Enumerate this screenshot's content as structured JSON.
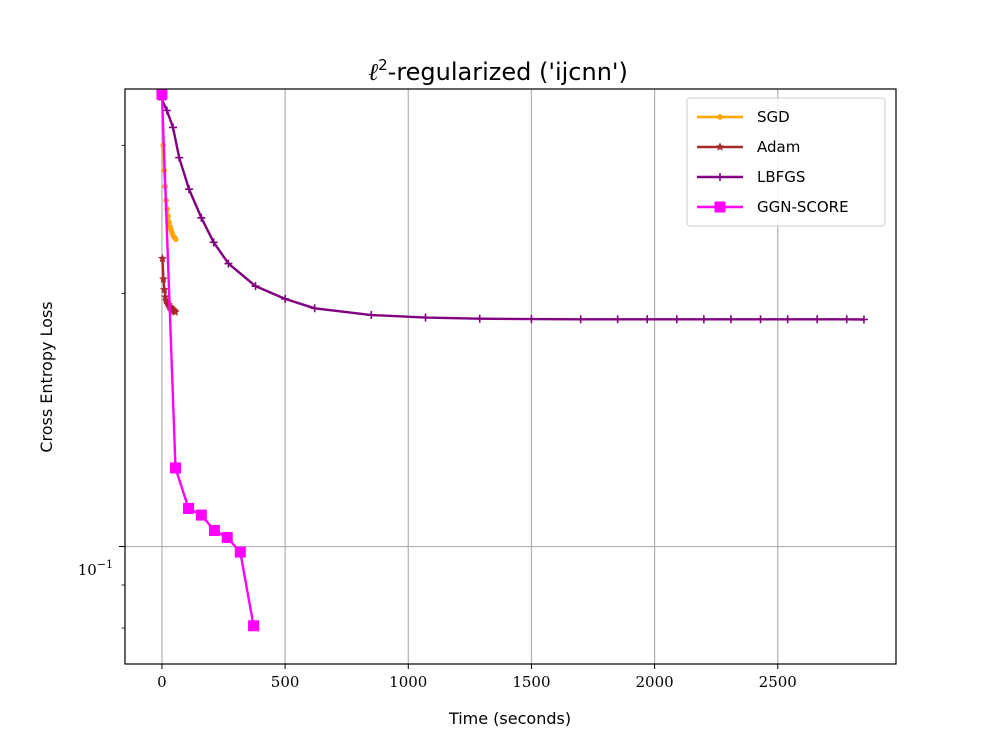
{
  "chart_data": {
    "type": "line",
    "title_main": "-regularized ('ijcnn')",
    "title_symbol": "ℓ",
    "title_sup": "2",
    "xlabel": "Time (seconds)",
    "ylabel": "Cross Entropy Loss",
    "xscale": "linear",
    "yscale": "log",
    "xlim": [
      -150,
      2980
    ],
    "ylim": [
      0.0725,
      0.35
    ],
    "xticks": [
      0,
      500,
      1000,
      1500,
      2000,
      2500
    ],
    "xtick_labels": [
      "0",
      "500",
      "1000",
      "1500",
      "2000",
      "2500"
    ],
    "ytick_major_label_base": "10",
    "ytick_major_label_exp": "−1",
    "ytick_major_value": 0.1,
    "grid": true,
    "legend_position": "top-right",
    "series": [
      {
        "name": "SGD",
        "color": "#ffa500",
        "marker": "circle",
        "x": [
          5,
          9,
          13,
          17,
          21,
          25,
          29,
          33,
          37,
          41,
          46,
          51,
          56
        ],
        "y": [
          0.3,
          0.28,
          0.268,
          0.258,
          0.252,
          0.247,
          0.243,
          0.24,
          0.238,
          0.236,
          0.234,
          0.233,
          0.232
        ]
      },
      {
        "name": "Adam",
        "color": "#a52a2a",
        "marker": "star",
        "x": [
          2,
          6,
          10,
          14,
          18,
          22,
          26,
          30,
          34,
          38,
          42,
          46,
          50,
          54
        ],
        "y": [
          0.22,
          0.208,
          0.202,
          0.198,
          0.196,
          0.195,
          0.194,
          0.193,
          0.1925,
          0.192,
          0.1915,
          0.191,
          0.1905,
          0.19
        ]
      },
      {
        "name": "LBFGS",
        "color": "#800080",
        "marker": "plus",
        "x": [
          0,
          20,
          45,
          70,
          110,
          160,
          210,
          270,
          380,
          500,
          620,
          850,
          1070,
          1290,
          1500,
          1700,
          1850,
          1970,
          2090,
          2200,
          2310,
          2430,
          2540,
          2660,
          2780,
          2850
        ],
        "y": [
          0.34,
          0.33,
          0.315,
          0.29,
          0.266,
          0.246,
          0.23,
          0.217,
          0.204,
          0.197,
          0.192,
          0.1885,
          0.1872,
          0.1866,
          0.1864,
          0.1863,
          0.1863,
          0.1863,
          0.1863,
          0.1863,
          0.1863,
          0.1863,
          0.1863,
          0.1863,
          0.1863,
          0.1862
        ]
      },
      {
        "name": "GGN-SCORE",
        "color": "#ff00ff",
        "marker": "square",
        "x": [
          0,
          55,
          108,
          160,
          213,
          265,
          318,
          372
        ],
        "y": [
          0.345,
          0.124,
          0.111,
          0.109,
          0.1045,
          0.1025,
          0.0985,
          0.0805
        ]
      }
    ]
  }
}
